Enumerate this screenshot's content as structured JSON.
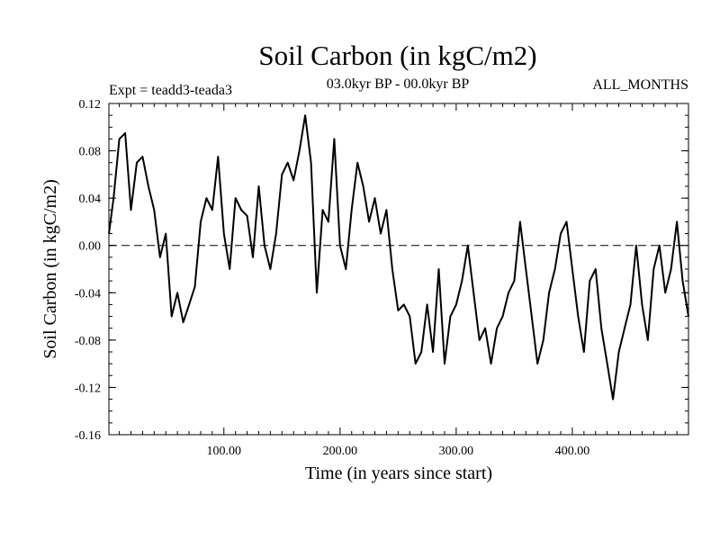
{
  "chart_data": {
    "type": "line",
    "title": "Soil Carbon (in kgC/m2)",
    "subtitle": "03.0kyr BP - 00.0kyr BP",
    "left_annotation": "Expt = teadd3-teada3",
    "right_annotation": "ALL_MONTHS",
    "xlabel": "Time (in years since start)",
    "ylabel": "Soil Carbon (in kgC/m2)",
    "xlim": [
      1,
      500
    ],
    "ylim": [
      -0.16,
      0.12
    ],
    "x_ticks": [
      100,
      200,
      300,
      400
    ],
    "x_tick_labels": [
      "100.00",
      "200.00",
      "300.00",
      "400.00"
    ],
    "y_ticks": [
      0.12,
      0.08,
      0.04,
      0.0,
      -0.04,
      -0.08,
      -0.12,
      -0.16
    ],
    "y_tick_labels": [
      "0.12",
      "0.08",
      "0.04",
      "0.00",
      "-0.04",
      "-0.08",
      "-0.12",
      "-0.16"
    ],
    "reference_line": 0.0,
    "series": [
      {
        "name": "teadd3-teada3",
        "x": [
          1,
          5,
          10,
          15,
          20,
          25,
          30,
          35,
          40,
          45,
          50,
          55,
          60,
          65,
          70,
          75,
          80,
          85,
          90,
          95,
          100,
          105,
          110,
          115,
          120,
          125,
          130,
          135,
          140,
          145,
          150,
          155,
          160,
          165,
          170,
          175,
          180,
          185,
          190,
          195,
          200,
          205,
          210,
          215,
          220,
          225,
          230,
          235,
          240,
          245,
          250,
          255,
          260,
          265,
          270,
          275,
          280,
          285,
          290,
          295,
          300,
          305,
          310,
          315,
          320,
          325,
          330,
          335,
          340,
          345,
          350,
          355,
          360,
          365,
          370,
          375,
          380,
          385,
          390,
          395,
          400,
          405,
          410,
          415,
          420,
          425,
          430,
          435,
          440,
          445,
          450,
          455,
          460,
          465,
          470,
          475,
          480,
          485,
          490,
          495,
          500
        ],
        "values": [
          0.01,
          0.04,
          0.09,
          0.095,
          0.03,
          0.07,
          0.075,
          0.05,
          0.03,
          -0.01,
          0.01,
          -0.06,
          -0.04,
          -0.065,
          -0.05,
          -0.035,
          0.02,
          0.04,
          0.03,
          0.075,
          0.01,
          -0.02,
          0.04,
          0.03,
          0.025,
          -0.01,
          0.05,
          0.0,
          -0.02,
          0.01,
          0.06,
          0.07,
          0.055,
          0.08,
          0.11,
          0.07,
          -0.04,
          0.03,
          0.02,
          0.09,
          0.0,
          -0.02,
          0.03,
          0.07,
          0.05,
          0.02,
          0.04,
          0.01,
          0.03,
          -0.02,
          -0.055,
          -0.05,
          -0.06,
          -0.1,
          -0.09,
          -0.05,
          -0.09,
          -0.02,
          -0.1,
          -0.06,
          -0.05,
          -0.03,
          0.0,
          -0.04,
          -0.08,
          -0.07,
          -0.1,
          -0.07,
          -0.06,
          -0.04,
          -0.03,
          0.02,
          -0.02,
          -0.06,
          -0.1,
          -0.08,
          -0.04,
          -0.02,
          0.01,
          0.02,
          -0.02,
          -0.06,
          -0.09,
          -0.03,
          -0.02,
          -0.07,
          -0.1,
          -0.13,
          -0.09,
          -0.07,
          -0.05,
          0.0,
          -0.05,
          -0.08,
          -0.02,
          0.0,
          -0.04,
          -0.02,
          0.02,
          -0.03,
          -0.06
        ]
      }
    ]
  }
}
